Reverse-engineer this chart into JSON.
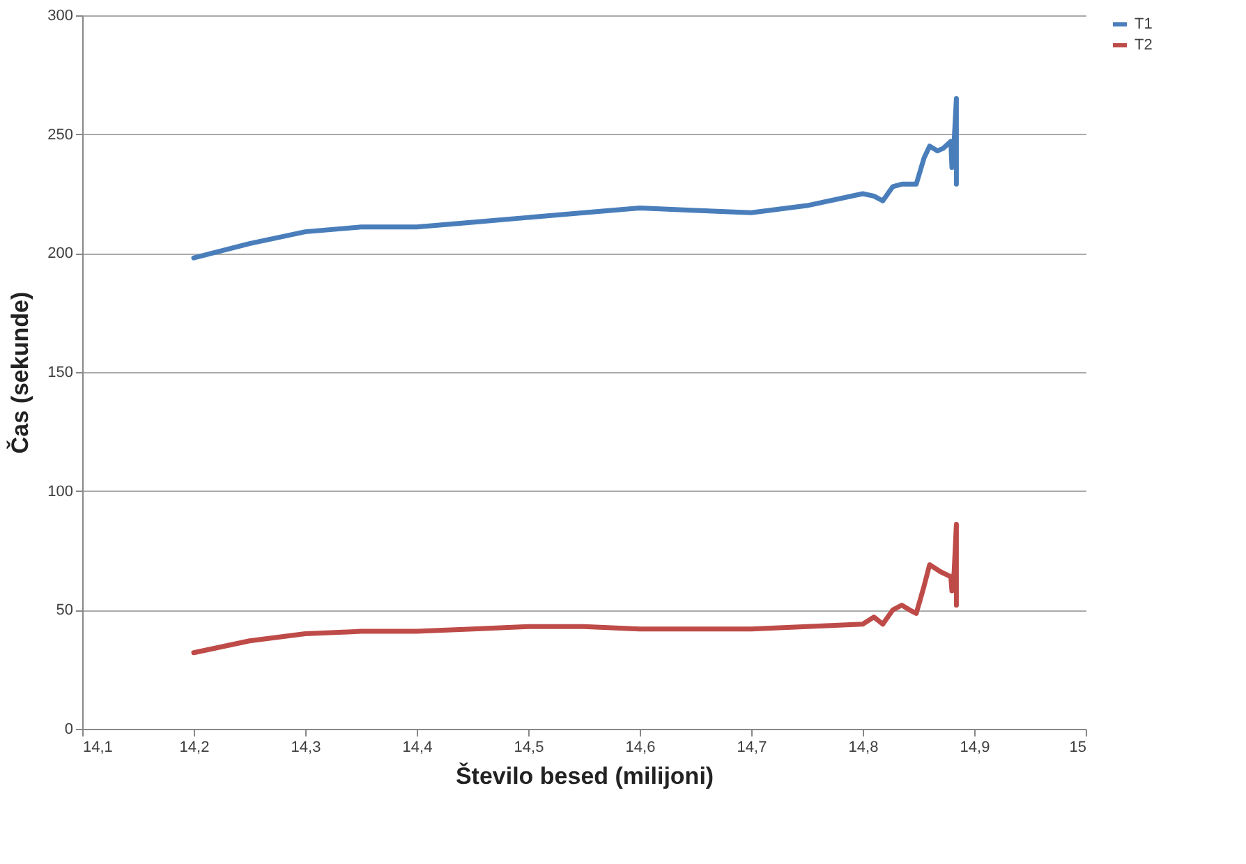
{
  "chart_data": {
    "type": "line",
    "xlabel": "Število besed (milijoni)",
    "ylabel": "Čas (sekunde)",
    "xlim": [
      14.1,
      15
    ],
    "ylim": [
      0,
      300
    ],
    "xticks": [
      {
        "value": 14.1,
        "label": "14,1"
      },
      {
        "value": 14.2,
        "label": "14,2"
      },
      {
        "value": 14.3,
        "label": "14,3"
      },
      {
        "value": 14.4,
        "label": "14,4"
      },
      {
        "value": 14.5,
        "label": "14,5"
      },
      {
        "value": 14.6,
        "label": "14,6"
      },
      {
        "value": 14.7,
        "label": "14,7"
      },
      {
        "value": 14.8,
        "label": "14,8"
      },
      {
        "value": 14.9,
        "label": "14,9"
      },
      15
    ],
    "yticks": [
      0,
      50,
      100,
      150,
      200,
      250,
      300
    ],
    "grid": "y",
    "legend": "right",
    "line_style": "solid",
    "marker": "none",
    "series": [
      {
        "name": "T1",
        "color": "#4a7ebb",
        "x": [
          14.2,
          14.25,
          14.3,
          14.35,
          14.4,
          14.45,
          14.5,
          14.55,
          14.6,
          14.65,
          14.7,
          14.75,
          14.8,
          14.81,
          14.818,
          14.827,
          14.835,
          14.848,
          14.855,
          14.86,
          14.867,
          14.872,
          14.879,
          14.88,
          14.882,
          14.884,
          14.884,
          14.884
        ],
        "values": [
          198,
          204,
          209,
          211,
          211,
          213,
          215,
          217,
          219,
          218,
          217,
          220,
          225,
          224,
          222,
          228,
          229,
          229,
          240,
          245,
          243,
          244,
          247,
          236,
          247,
          265,
          229,
          240
        ]
      },
      {
        "name": "T2",
        "color": "#be4b48",
        "x": [
          14.2,
          14.25,
          14.3,
          14.35,
          14.4,
          14.45,
          14.5,
          14.55,
          14.6,
          14.65,
          14.7,
          14.75,
          14.8,
          14.81,
          14.818,
          14.827,
          14.835,
          14.842,
          14.848,
          14.855,
          14.86,
          14.87,
          14.879,
          14.88,
          14.882,
          14.884,
          14.884,
          14.884
        ],
        "values": [
          32,
          37,
          40,
          41,
          41,
          42,
          43,
          43,
          42,
          42,
          42,
          43,
          44,
          47,
          44,
          50,
          52,
          50,
          48.5,
          60,
          69,
          66,
          64,
          58,
          66,
          86,
          52,
          62
        ]
      }
    ]
  }
}
